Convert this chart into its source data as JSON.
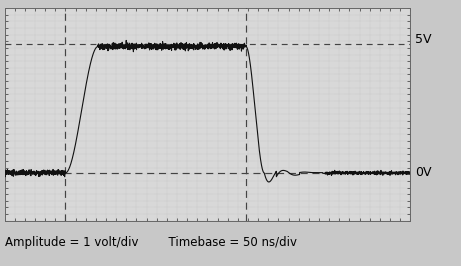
{
  "xlabel_text": "Amplitude = 1 volt/div        Timebase = 50 ns/div",
  "bg_color": "#c8c8c8",
  "plot_bg_color": "#d8d8d8",
  "grid_color": "#aaaaaa",
  "signal_color": "#111111",
  "dashed_color": "#444444",
  "dotted_color": "#444444",
  "label_5V": "5V",
  "label_0V": "0V",
  "ylim": [
    -1.8,
    6.2
  ],
  "xlim": [
    0,
    10
  ],
  "zero_y": 0.0,
  "five_y": 5.0,
  "rise_start_x": 1.5,
  "rise_end_x": 2.3,
  "fall_start_x": 5.95,
  "fall_end_x": 6.4,
  "flat_top_y": 4.75,
  "noise_amplitude_flat": 0.06,
  "noise_amplitude_base": 0.05,
  "dashed_vertical_x1": 1.5,
  "dashed_vertical_x2": 5.95,
  "dotted_horizontal_y": 4.85,
  "zero_horizontal_y": 0.0,
  "font_size_label": 8.5
}
